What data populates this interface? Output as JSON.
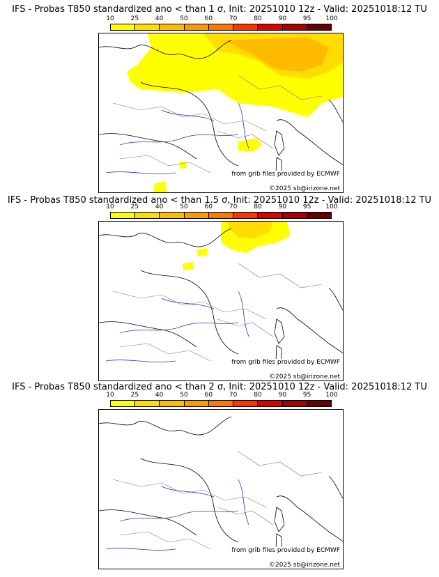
{
  "colorbar": {
    "ticks": [
      "10",
      "25",
      "40",
      "50",
      "60",
      "70",
      "80",
      "90",
      "95",
      "100"
    ],
    "colors": [
      "#ffff00",
      "#ffdd00",
      "#ffbb00",
      "#ff9900",
      "#ff7700",
      "#ff3300",
      "#dd0000",
      "#aa0000",
      "#660000"
    ]
  },
  "credits": {
    "source": "from grib files provided by ECMWF",
    "copyright": "©2025 sb@irizone.net"
  },
  "panels": [
    {
      "title": "IFS - Probas T850  standardized ano < than 1 σ, Init: 20251010 12z - Valid: 20251018:12 TU",
      "threshold": "1 σ",
      "coverage": "high"
    },
    {
      "title": "IFS - Probas T850  standardized ano < than 1.5 σ, Init: 20251010 12z - Valid: 20251018:12 TU",
      "threshold": "1.5 σ",
      "coverage": "low"
    },
    {
      "title": "IFS - Probas T850  standardized ano < than 2 σ, Init: 20251010 12z - Valid: 20251018:12 TU",
      "threshold": "2 σ",
      "coverage": "none"
    }
  ]
}
